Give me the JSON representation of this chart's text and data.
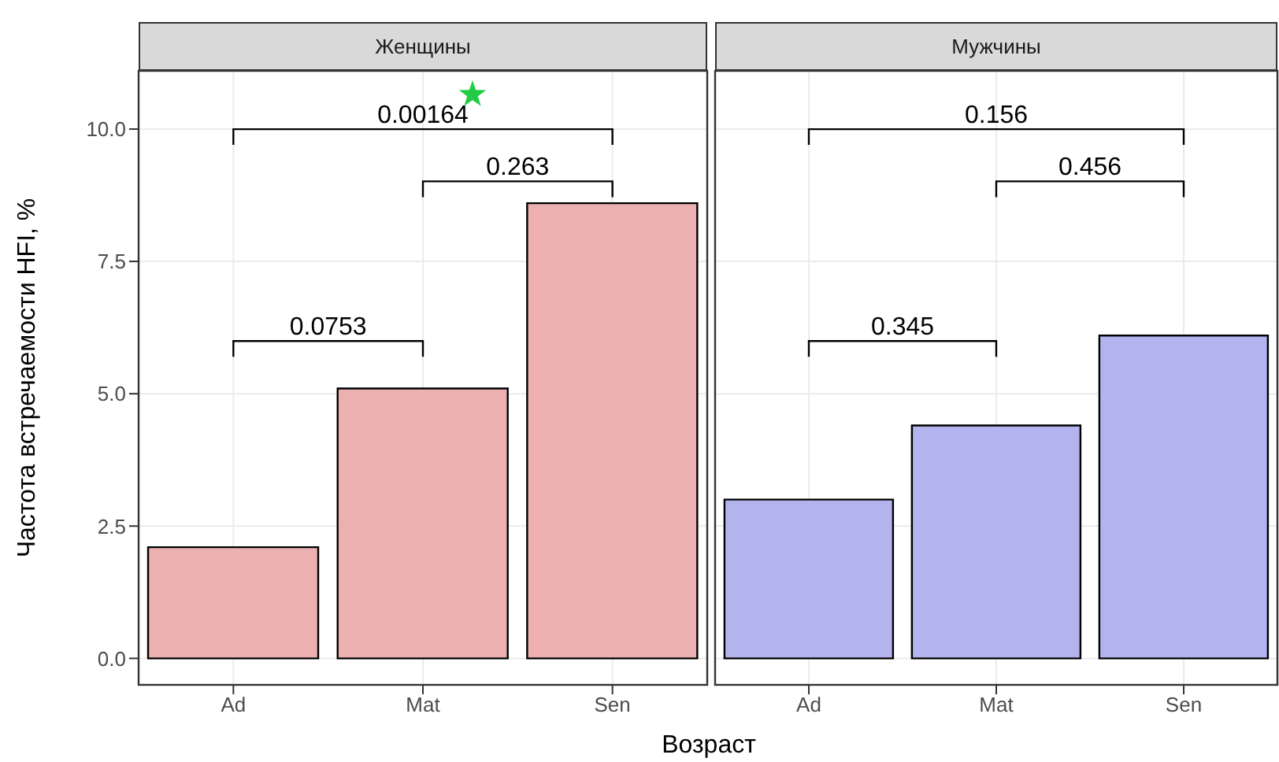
{
  "chart_data": [
    {
      "type": "bar",
      "title": "Женщины",
      "xlabel": "Возраст",
      "ylabel": "Частота встречаемости HFI, %",
      "categories": [
        "Ad",
        "Mat",
        "Sen"
      ],
      "values": [
        2.1,
        5.1,
        8.6
      ],
      "color": "#ecb0b0",
      "ylim": [
        -0.5,
        11.1
      ],
      "yticks": [
        {
          "value": 0,
          "label": "0.0"
        },
        {
          "value": 2.5,
          "label": "2.5"
        },
        {
          "value": 5,
          "label": "5.0"
        },
        {
          "value": 7.5,
          "label": "7.5"
        },
        {
          "value": 10,
          "label": "10.0"
        }
      ],
      "grid": true,
      "legend": false,
      "annotations": [
        "0.0753",
        "0.263",
        "0.00164"
      ]
    },
    {
      "type": "bar",
      "title": "Мужчины",
      "categories": [
        "Ad",
        "Mat",
        "Sen"
      ],
      "values": [
        3.0,
        4.4,
        6.1
      ],
      "color": "#b3b3ee",
      "ylim": [
        -0.5,
        11.1
      ],
      "yticks": [
        0,
        2.5,
        5,
        7.5,
        10
      ],
      "grid": true,
      "legend": false,
      "tick_labels": "x",
      "annotations": [
        "0.345",
        "0.456",
        "0.156"
      ]
    }
  ]
}
